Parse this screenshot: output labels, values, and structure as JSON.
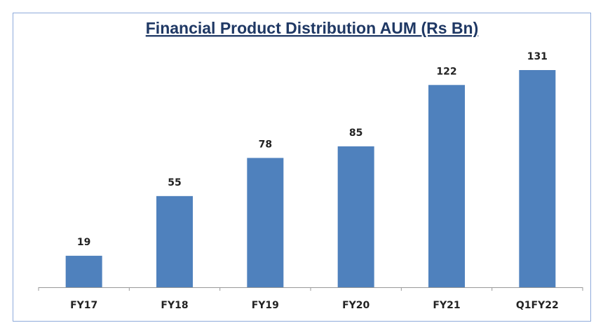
{
  "chart_data": {
    "type": "bar",
    "title": "Financial Product Distribution AUM (Rs Bn)",
    "categories": [
      "FY17",
      "FY18",
      "FY19",
      "FY20",
      "FY21",
      "Q1FY22"
    ],
    "values": [
      19,
      55,
      78,
      85,
      122,
      131
    ],
    "color": "#4f81bd"
  }
}
